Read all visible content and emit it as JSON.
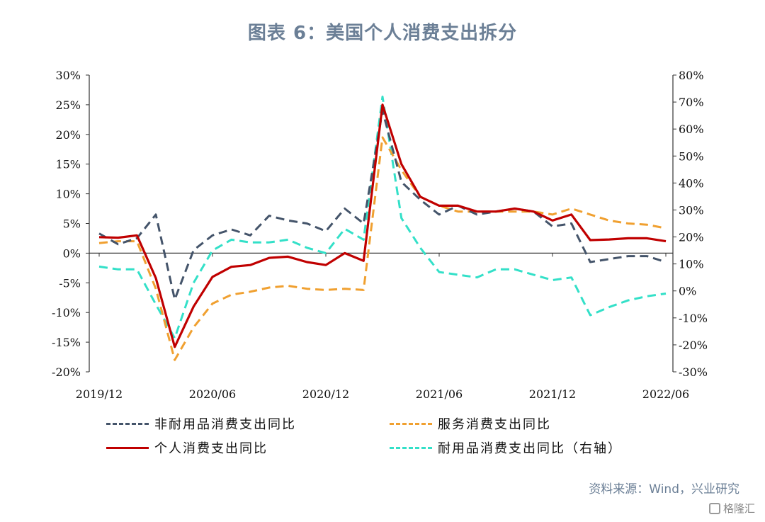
{
  "title": "图表 6：美国个人消费支出拆分",
  "source": "资料来源：Wind，兴业研究",
  "watermark": "格隆汇",
  "chart_data": {
    "type": "line",
    "x_tick_labels": [
      "2019/12",
      "2020/06",
      "2020/12",
      "2021/06",
      "2021/12",
      "2022/06"
    ],
    "x": [
      "2019/12",
      "2020/01",
      "2020/02",
      "2020/03",
      "2020/04",
      "2020/05",
      "2020/06",
      "2020/07",
      "2020/08",
      "2020/09",
      "2020/10",
      "2020/11",
      "2020/12",
      "2021/01",
      "2021/02",
      "2021/03",
      "2021/04",
      "2021/05",
      "2021/06",
      "2021/07",
      "2021/08",
      "2021/09",
      "2021/10",
      "2021/11",
      "2021/12",
      "2022/01",
      "2022/02",
      "2022/03",
      "2022/04",
      "2022/05",
      "2022/06"
    ],
    "y_left": {
      "min": -20,
      "max": 30,
      "ticks": [
        "30%",
        "25%",
        "20%",
        "15%",
        "10%",
        "5%",
        "0%",
        "-5%",
        "-10%",
        "-15%",
        "-20%"
      ]
    },
    "y_right": {
      "min": -30,
      "max": 80,
      "ticks": [
        "80%",
        "70%",
        "60%",
        "50%",
        "40%",
        "30%",
        "20%",
        "10%",
        "0%",
        "-10%",
        "-20%",
        "-30%"
      ]
    },
    "series": [
      {
        "name": "非耐用品消费支出同比",
        "axis": "left",
        "color": "#44546a",
        "dash": "dash",
        "values": [
          3.3,
          1.5,
          2.5,
          6.5,
          -7.8,
          0.5,
          3.0,
          4.0,
          3.0,
          6.3,
          5.5,
          5.0,
          3.7,
          7.5,
          5.0,
          24.0,
          12.0,
          9.0,
          6.5,
          8.0,
          6.5,
          7.0,
          7.5,
          7.0,
          4.5,
          5.0,
          -1.5,
          -1.0,
          -0.5,
          -0.5,
          -1.5
        ]
      },
      {
        "name": "服务消费支出同比",
        "axis": "left",
        "color": "#f0a030",
        "dash": "dash",
        "values": [
          1.7,
          2.0,
          2.0,
          -6.0,
          -18.0,
          -12.5,
          -8.5,
          -7.0,
          -6.5,
          -5.8,
          -5.5,
          -6.0,
          -6.2,
          -6.0,
          -6.2,
          19.5,
          14.0,
          9.5,
          8.0,
          7.0,
          7.0,
          7.0,
          7.0,
          7.0,
          6.5,
          7.5,
          6.5,
          5.5,
          5.0,
          4.8,
          4.2
        ]
      },
      {
        "name": "个人消费支出同比",
        "axis": "left",
        "color": "#c00000",
        "dash": "solid",
        "values": [
          2.7,
          2.6,
          3.0,
          -4.2,
          -15.8,
          -9.0,
          -4.0,
          -2.3,
          -2.0,
          -0.8,
          -0.6,
          -1.5,
          -2.0,
          0.0,
          -1.3,
          25.0,
          15.0,
          9.5,
          8.0,
          8.0,
          7.0,
          7.0,
          7.5,
          7.0,
          5.5,
          6.5,
          2.2,
          2.3,
          2.5,
          2.5,
          2.0
        ]
      },
      {
        "name": "耐用品消费支出同比（右轴）",
        "axis": "right",
        "color": "#33e0c8",
        "dash": "dash",
        "values": [
          9.0,
          8.0,
          8.0,
          -5.0,
          -17.5,
          3.0,
          15.0,
          19.0,
          18.0,
          18.0,
          19.0,
          16.0,
          14.0,
          23.0,
          19.0,
          72.0,
          27.0,
          16.0,
          7.0,
          6.0,
          5.0,
          8.0,
          8.0,
          6.0,
          4.0,
          5.0,
          -9.0,
          -6.0,
          -3.5,
          -2.0,
          -1.0
        ]
      }
    ]
  }
}
